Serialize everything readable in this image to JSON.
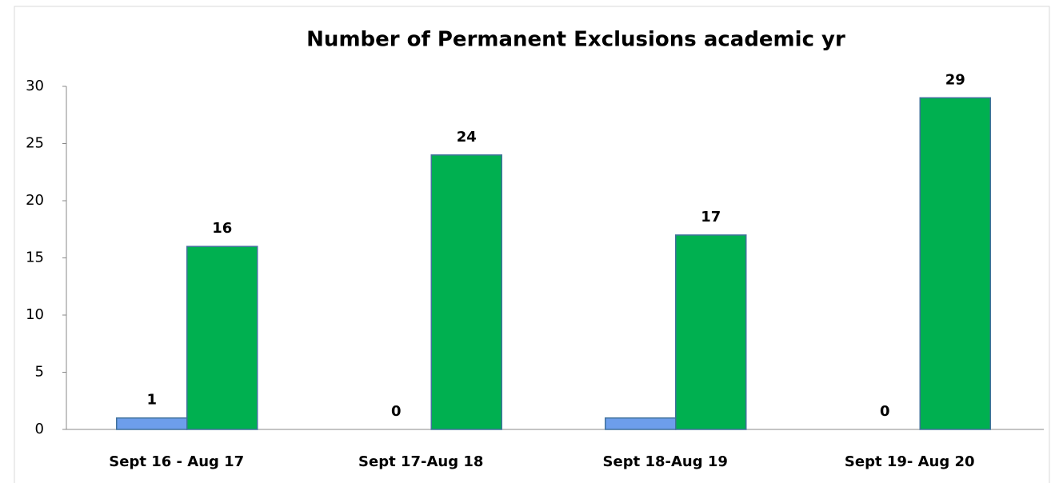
{
  "chart_data": {
    "type": "bar",
    "title": "Number of  Permanent Exclusions academic yr",
    "categories": [
      "Sept 16 - Aug 17",
      "Sept 17-Aug 18",
      "Sept 18-Aug 19",
      "Sept 19- Aug 20"
    ],
    "series": [
      {
        "color": "#6d9eeb",
        "values": [
          1,
          0,
          1,
          0
        ],
        "value_labels": [
          "1",
          "0",
          null,
          "0"
        ]
      },
      {
        "color": "#00b050",
        "values": [
          16,
          24,
          17,
          29
        ]
      }
    ],
    "ylim": [
      0,
      30
    ],
    "yticks": [
      0,
      5,
      10,
      15,
      20,
      25,
      30
    ],
    "grid": false
  }
}
